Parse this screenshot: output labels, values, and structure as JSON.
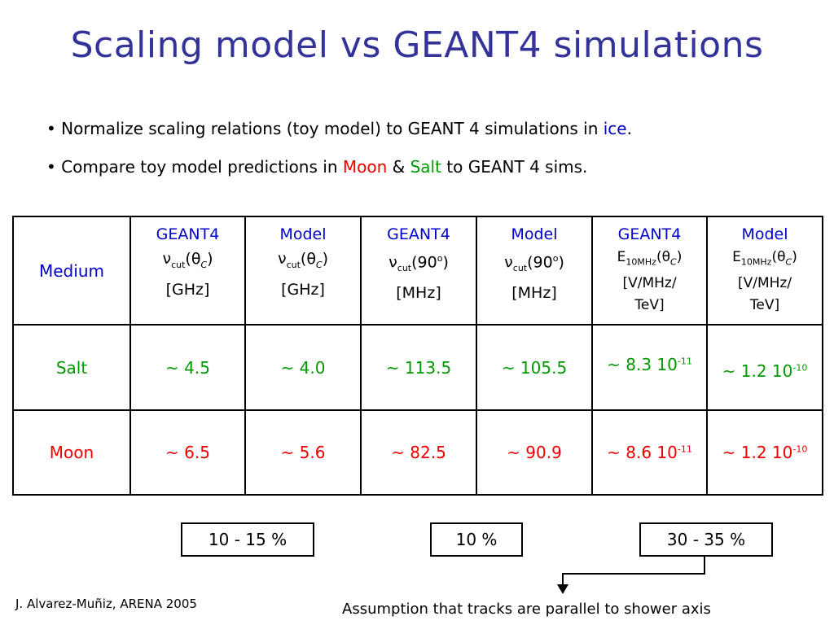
{
  "title": "Scaling model vs GEANT4 simulations",
  "bullets": [
    {
      "marker": "•",
      "pre": "Normalize scaling relations (toy model) to GEANT 4 simulations in ",
      "ice": "ice",
      "post": "."
    },
    {
      "marker": "•",
      "pre": "Compare toy model predictions in ",
      "moon": "Moon",
      "amp": " & ",
      "salt": "Salt",
      "post": " to GEANT 4 sims."
    }
  ],
  "table": {
    "medium_label": "Medium",
    "headers": [
      {
        "label": "GEANT4",
        "qty": "ν",
        "sub": "cut",
        "arg": "(θ",
        "argsub": "C",
        "close": ")",
        "unit": "[GHz]"
      },
      {
        "label": "Model",
        "qty": "ν",
        "sub": "cut",
        "arg": "(θ",
        "argsub": "C",
        "close": ")",
        "unit": "[GHz]"
      },
      {
        "label": "GEANT4",
        "qty": "ν",
        "sub": "cut",
        "arg": "(90",
        "argsup": "o",
        "close": ")",
        "unit": "[MHz]"
      },
      {
        "label": "Model",
        "qty": "ν",
        "sub": "cut",
        "arg": "(90",
        "argsup": "o",
        "close": ")",
        "unit": "[MHz]"
      },
      {
        "label": "GEANT4",
        "qty": "E",
        "sub": "10MHz",
        "arg": "(θ",
        "argsub": "C",
        "close": ")",
        "unit1": "[V/MHz/",
        "unit2": "TeV]"
      },
      {
        "label": "Model",
        "qty": "E",
        "sub": "10MHz",
        "arg": "(θ",
        "argsub": "C",
        "close": ")",
        "unit1": "[V/MHz/",
        "unit2": "TeV]"
      }
    ],
    "rows": [
      {
        "name": "Salt",
        "v1": "~ 4.5",
        "v2": "~ 4.0",
        "v3": "~ 113.5",
        "v4": "~ 105.5",
        "e1": "~ 8.3 10",
        "e1exp": "-11",
        "e2": "~ 1.2 10",
        "e2exp": "-10"
      },
      {
        "name": "Moon",
        "v1": "~ 6.5",
        "v2": "~ 5.6",
        "v3": "~ 82.5",
        "v4": "~ 90.9",
        "e1": "~ 8.6 10",
        "e1exp": "-11",
        "e2": "~ 1.2 10",
        "e2exp": "-10"
      }
    ]
  },
  "boxes": [
    "10 - 15 %",
    "10 %",
    "30 - 35 %"
  ],
  "footer": "J. Alvarez-Muñiz, ARENA 2005",
  "note": "Assumption that tracks are parallel to shower axis",
  "colors": {
    "title": "#333399",
    "blue": "#0000cc",
    "red": "#ee0000",
    "green": "#009900"
  }
}
